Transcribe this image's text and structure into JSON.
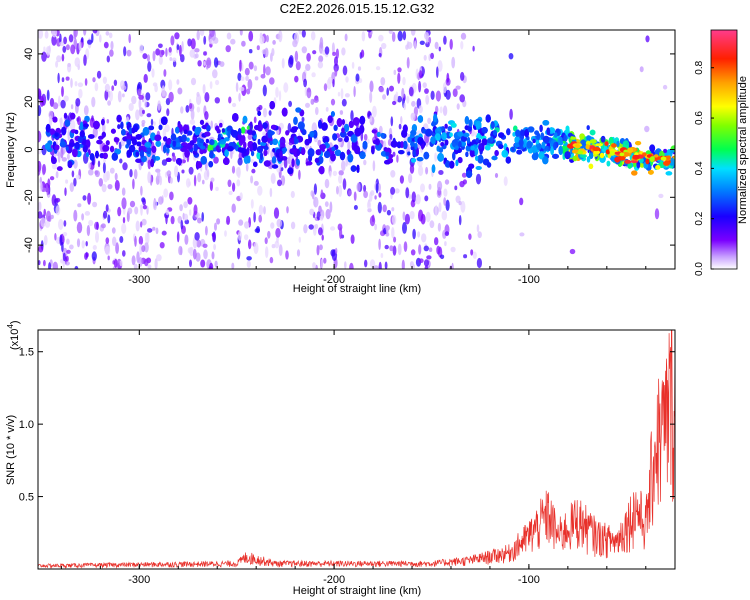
{
  "title": "C2E2.2026.015.15.12.G32",
  "chart_data": [
    {
      "type": "heatmap",
      "xlabel": "Height of straight line (km)",
      "ylabel": "Frequency (Hz)",
      "xlim": [
        -352,
        -25
      ],
      "ylim": [
        -50,
        50
      ],
      "x_ticks": [
        -300,
        -200,
        -100
      ],
      "x_tick_labels": [
        "-300",
        "-200",
        "-100"
      ],
      "y_ticks": [
        -40,
        -20,
        0,
        20,
        40
      ],
      "y_tick_labels": [
        "-40",
        "-20",
        "0",
        "20",
        "40"
      ],
      "colorbar": {
        "label": "Normalized spectral amplitude",
        "range": [
          0,
          0.95
        ],
        "ticks": [
          0,
          0.2,
          0.4,
          0.6,
          0.8
        ],
        "tick_labels": [
          "0.0",
          "0.2",
          "0.4",
          "0.6",
          "0.8"
        ],
        "colormap": "rainbow"
      },
      "ridge": [
        {
          "x": -350,
          "y": 4
        },
        {
          "x": -300,
          "y": 3
        },
        {
          "x": -250,
          "y": 4
        },
        {
          "x": -200,
          "y": 3
        },
        {
          "x": -150,
          "y": 4
        },
        {
          "x": -100,
          "y": 3
        },
        {
          "x": -80,
          "y": 2
        },
        {
          "x": -60,
          "y": 0
        },
        {
          "x": -40,
          "y": -4
        },
        {
          "x": -25,
          "y": -4
        }
      ],
      "grid": false,
      "legend": "none"
    },
    {
      "type": "line",
      "xlabel": "Height of straight line (km)",
      "ylabel": "SNR (10 * v/v)",
      "y_multiplier_label": "(x10",
      "y_multiplier_exponent": "4",
      "y_multiplier_close": ")",
      "xlim": [
        -352,
        -25
      ],
      "ylim": [
        0,
        1.65
      ],
      "x_ticks": [
        -300,
        -200,
        -100
      ],
      "x_tick_labels": [
        "-300",
        "-200",
        "-100"
      ],
      "y_ticks": [
        0.5,
        1.0,
        1.5
      ],
      "y_tick_labels": [
        "0.5",
        "1.0",
        "1.5"
      ],
      "color": "#e8302a",
      "envelope": [
        {
          "x": -352,
          "y": 0.03
        },
        {
          "x": -250,
          "y": 0.05
        },
        {
          "x": -245,
          "y": 0.11
        },
        {
          "x": -230,
          "y": 0.05
        },
        {
          "x": -150,
          "y": 0.05
        },
        {
          "x": -130,
          "y": 0.08
        },
        {
          "x": -110,
          "y": 0.15
        },
        {
          "x": -100,
          "y": 0.3
        },
        {
          "x": -95,
          "y": 0.4
        },
        {
          "x": -90,
          "y": 0.5
        },
        {
          "x": -85,
          "y": 0.3
        },
        {
          "x": -75,
          "y": 0.45
        },
        {
          "x": -65,
          "y": 0.3
        },
        {
          "x": -55,
          "y": 0.25
        },
        {
          "x": -45,
          "y": 0.55
        },
        {
          "x": -40,
          "y": 0.4
        },
        {
          "x": -35,
          "y": 1.15
        },
        {
          "x": -30,
          "y": 1.3
        },
        {
          "x": -27,
          "y": 1.6
        },
        {
          "x": -25,
          "y": 1.6
        }
      ],
      "grid": false,
      "legend": "none"
    }
  ]
}
